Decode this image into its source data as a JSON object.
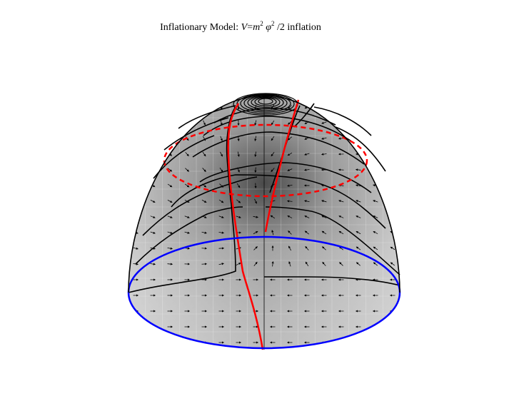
{
  "figure": {
    "title": {
      "prefix": "Inflationary Model: ",
      "v": "V",
      "eq": "=",
      "m": "m",
      "exp1": "2",
      "phi": " φ",
      "exp2": "2",
      "suffix": " /2 inflation"
    }
  },
  "colors": {
    "surface_light": "#dcdcdc",
    "surface_dark": "#7a7a7a",
    "trajectory": "#000000",
    "attractor": "#ff0000",
    "equator": "#0000ff",
    "mesh": "#ffffff"
  }
}
